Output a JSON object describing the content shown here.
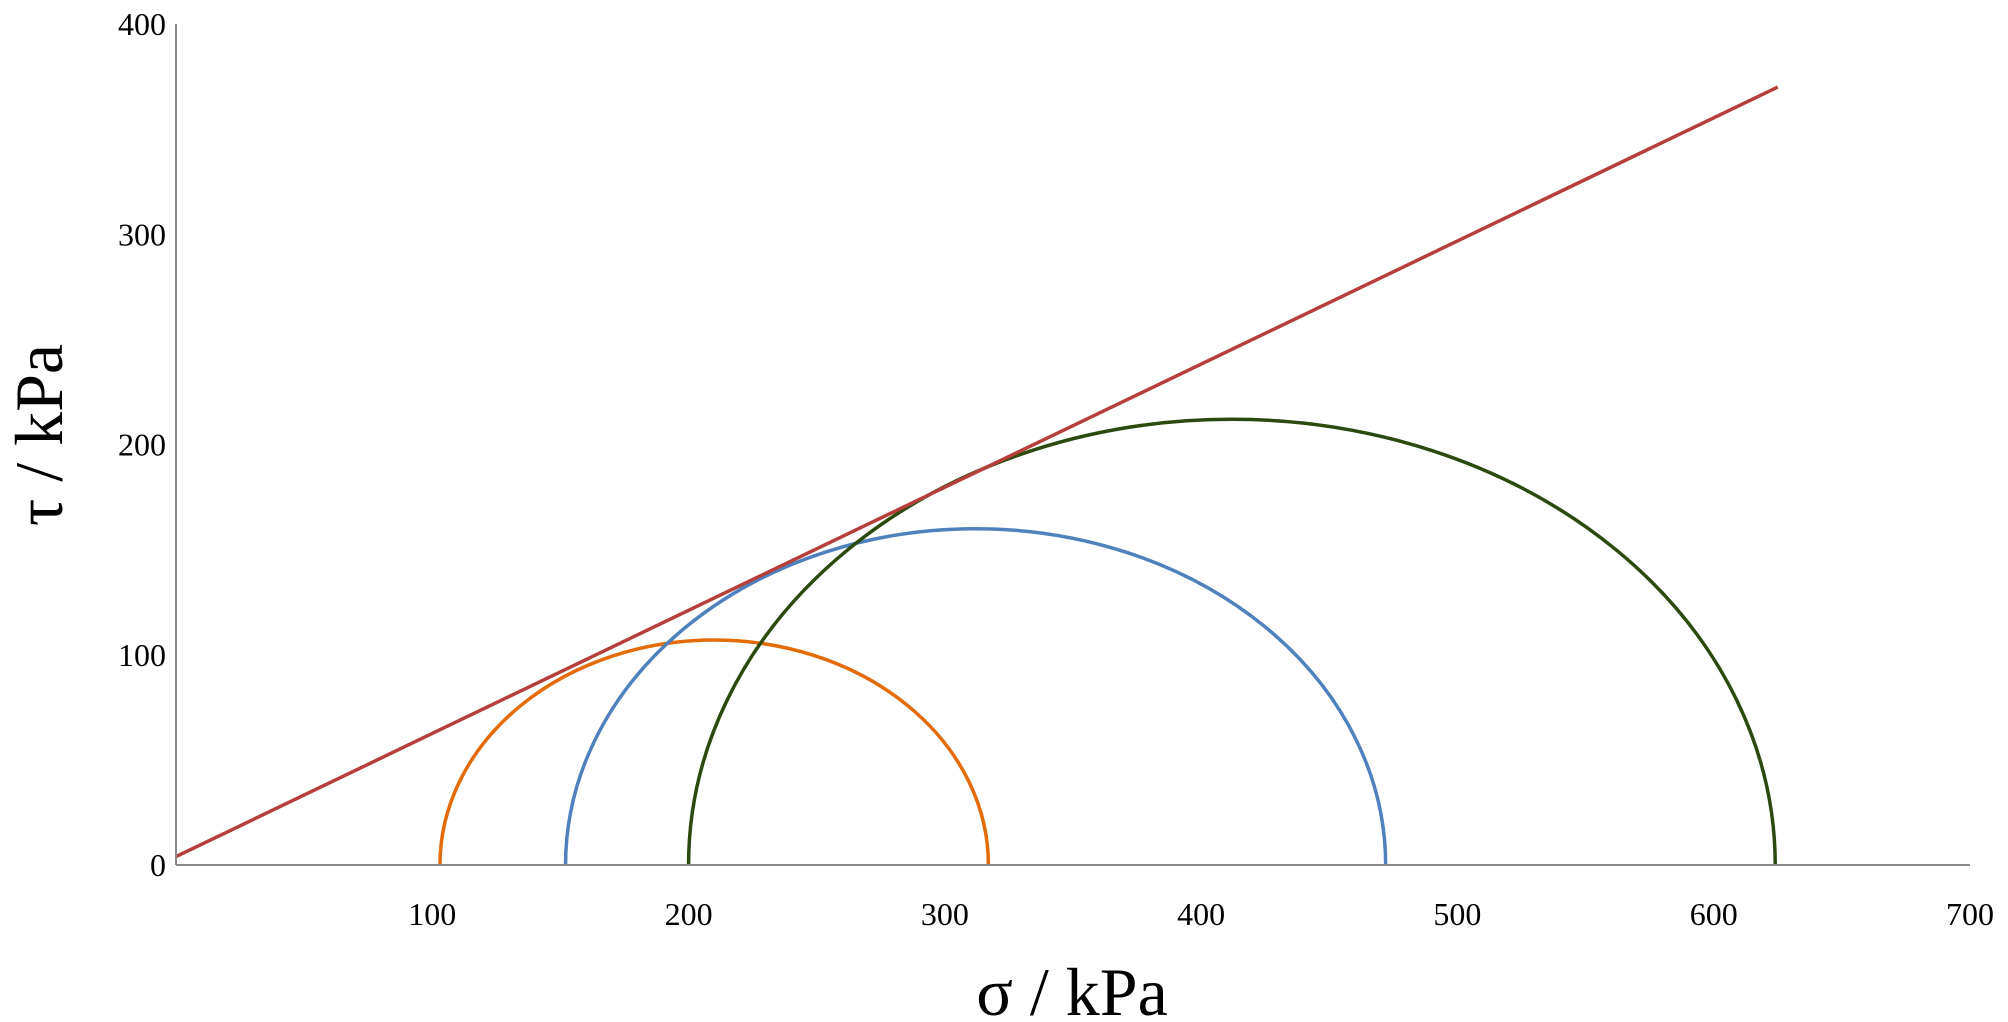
{
  "chart_data": {
    "type": "line",
    "title": "",
    "xlabel": "σ / kPa",
    "ylabel": "τ / kPa",
    "xlim": [
      0,
      700
    ],
    "ylim": [
      0,
      400
    ],
    "x_ticks": [
      "100",
      "200",
      "300",
      "400",
      "500",
      "600",
      "700"
    ],
    "y_ticks": [
      "0",
      "100",
      "200",
      "300",
      "400"
    ],
    "grid": false,
    "legend": "none",
    "series": [
      {
        "kind": "circle",
        "center": 210,
        "radius": 107,
        "color": "#E36C09"
      },
      {
        "kind": "circle",
        "center": 312,
        "radius": 160,
        "color": "#4F81BD"
      },
      {
        "kind": "circle",
        "center": 412,
        "radius": 212,
        "color": "#2D4A0E"
      },
      {
        "kind": "line",
        "x": [
          0,
          625
        ],
        "y": [
          4,
          370
        ],
        "color": "#B5403B"
      }
    ]
  }
}
